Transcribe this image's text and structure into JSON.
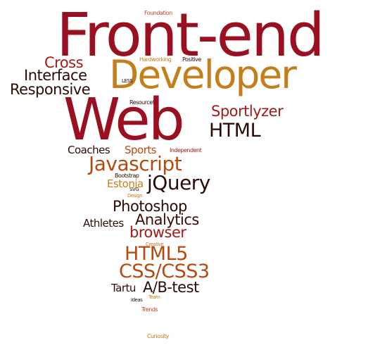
{
  "cloud": {
    "colors": {
      "darkred": "#9a1020",
      "crimson": "#a31a1a",
      "orange": "#b34a10",
      "gold": "#c47f1a",
      "brown": "#3a0d05",
      "darkbrown": "#2a0b05"
    },
    "words": {
      "foundation": "Foundation",
      "frontend": "Front-end",
      "hardworking": "Hardworking",
      "positive": "Positive",
      "cross": "Cross",
      "developer": "Developer",
      "interface": "Interface",
      "less": "LESS",
      "responsive": "Responsive",
      "resourceful": "Resourceful",
      "web": "Web",
      "sportlyzer": "Sportlyzer",
      "html": "HTML",
      "coaches": "Coaches",
      "sports": "Sports",
      "independent": "Independent",
      "javascript": "Javascript",
      "bootstrap": "Bootstrap",
      "estonia": "Estonia",
      "jquery": "jQuery",
      "svg": "SVG",
      "design": "Design",
      "photoshop": "Photoshop",
      "athletes": "Athletes",
      "analytics": "Analytics",
      "browser": "browser",
      "creative": "Creative",
      "html5": "HTML5",
      "css": "CSS/CSS3",
      "tartu": "Tartu",
      "abtest": "A/B-test",
      "team": "Team",
      "ideas": "Ideas",
      "trends": "Trends",
      "curiosity": "Curiosity"
    }
  }
}
